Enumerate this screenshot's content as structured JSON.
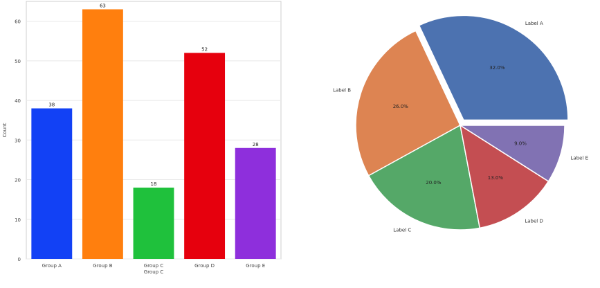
{
  "chart_data": [
    {
      "type": "bar",
      "title": "",
      "xlabel": "",
      "ylabel": "Count",
      "ylim": [
        0,
        65
      ],
      "yticks": [
        0,
        10,
        20,
        30,
        40,
        50,
        60
      ],
      "grid": "y",
      "categories": [
        "Group A",
        "Group B",
        "Group C\nGroup C",
        "Group D",
        "Group E"
      ],
      "values": [
        38,
        63,
        18,
        52,
        28
      ],
      "data_labels": [
        "38",
        "63",
        "18",
        "52",
        "28"
      ],
      "colors": [
        "#1241f5",
        "#ff7f0e",
        "#1fc13c",
        "#e6000d",
        "#8e2fdc"
      ]
    },
    {
      "type": "pie",
      "title": "",
      "labels": [
        "Label A",
        "Label B",
        "Label C",
        "Label D",
        "Label E"
      ],
      "values": [
        32.0,
        26.0,
        20.0,
        13.0,
        9.0
      ],
      "pct_labels": [
        "32.0%",
        "26.0%",
        "20.0%",
        "13.0%",
        "9.0%"
      ],
      "explode": [
        0.06,
        0,
        0,
        0,
        0
      ],
      "start_angle_deg": 0,
      "direction": "counterclockwise",
      "colors": [
        "#4c72b0",
        "#dd8452",
        "#55a868",
        "#c44e52",
        "#8172b3"
      ]
    }
  ]
}
